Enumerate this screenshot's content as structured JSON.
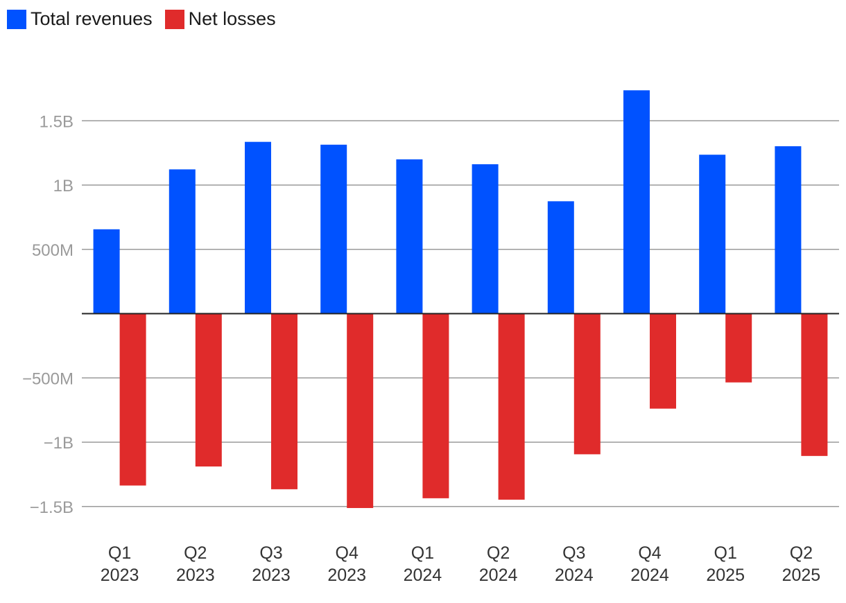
{
  "chart_data": {
    "type": "bar",
    "title": "",
    "xlabel": "",
    "ylabel": "",
    "categories": [
      [
        "Q1",
        "2023"
      ],
      [
        "Q2",
        "2023"
      ],
      [
        "Q3",
        "2023"
      ],
      [
        "Q4",
        "2023"
      ],
      [
        "Q1",
        "2024"
      ],
      [
        "Q2",
        "2024"
      ],
      [
        "Q3",
        "2024"
      ],
      [
        "Q4",
        "2024"
      ],
      [
        "Q1",
        "2025"
      ],
      [
        "Q2",
        "2025"
      ]
    ],
    "series": [
      {
        "name": "Total revenues",
        "color": "#0052ff",
        "values": [
          656000000,
          1122000000,
          1336000000,
          1314000000,
          1200000000,
          1162000000,
          874000000,
          1737000000,
          1236000000,
          1302000000
        ]
      },
      {
        "name": "Net losses",
        "color": "#e02b2b",
        "values": [
          -1337000000,
          -1189000000,
          -1366000000,
          -1512000000,
          -1436000000,
          -1447000000,
          -1094000000,
          -739000000,
          -535000000,
          -1107000000
        ]
      }
    ],
    "ylim": [
      -1650000000,
      2000000000
    ],
    "yticks": [
      {
        "value": 1500000000,
        "label": "1.5B"
      },
      {
        "value": 1000000000,
        "label": "1B"
      },
      {
        "value": 500000000,
        "label": "500M"
      },
      {
        "value": -500000000,
        "label": "−500M"
      },
      {
        "value": -1000000000,
        "label": "−1B"
      },
      {
        "value": -1500000000,
        "label": "−1.5B"
      }
    ],
    "grid": true,
    "legend_position": "top-left"
  }
}
